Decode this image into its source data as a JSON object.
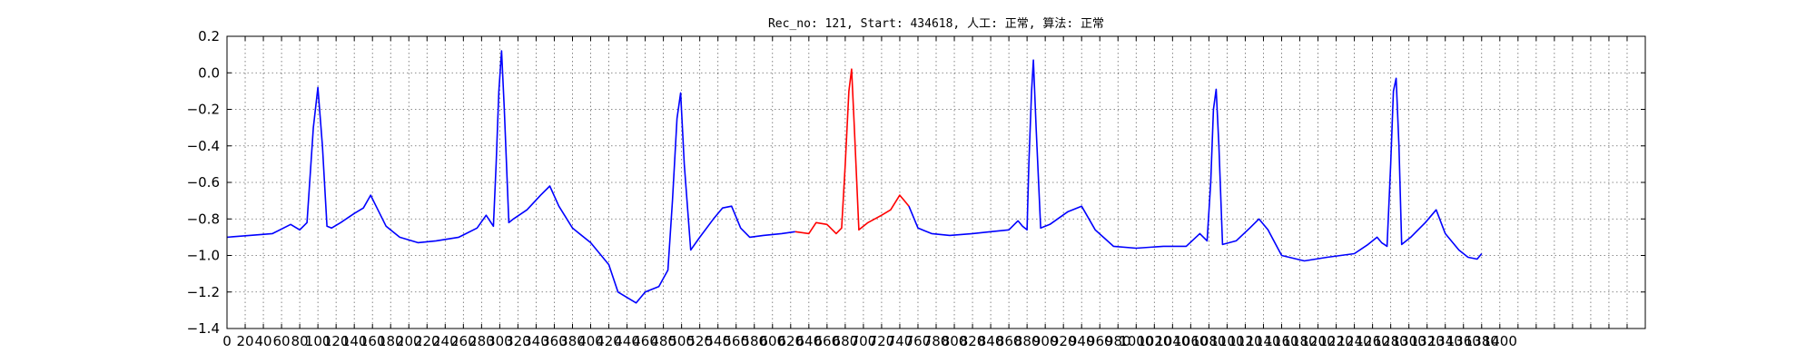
{
  "chart_data": {
    "type": "line",
    "title": "Rec_no: 121, Start: 434618, 人工: 正常, 算法: 正常",
    "xlabel": "",
    "ylabel": "",
    "xlim": [
      0,
      1560
    ],
    "ylim": [
      -1.4,
      0.2
    ],
    "grid": true,
    "x_tick_step": 20,
    "x_tick_labels_last": 1400,
    "y_ticks": [
      0.2,
      0.0,
      -0.2,
      -0.4,
      -0.6,
      -0.8,
      -1.0,
      -1.2,
      -1.4
    ],
    "y_tick_labels": [
      "0.2",
      "0.0",
      "−0.2",
      "−0.4",
      "−0.6",
      "−0.8",
      "−1.0",
      "−1.2",
      "−1.4"
    ],
    "highlight_color": "#ff0000",
    "base_color": "#0000ff",
    "series": [
      {
        "color": "#0000ff",
        "points": [
          [
            0,
            -0.9
          ],
          [
            25,
            -0.89
          ],
          [
            50,
            -0.88
          ],
          [
            70,
            -0.83
          ],
          [
            80,
            -0.86
          ],
          [
            88,
            -0.82
          ],
          [
            95,
            -0.3
          ],
          [
            100,
            -0.08
          ],
          [
            105,
            -0.4
          ],
          [
            110,
            -0.84
          ],
          [
            115,
            -0.85
          ],
          [
            125,
            -0.82
          ],
          [
            140,
            -0.77
          ],
          [
            150,
            -0.74
          ],
          [
            158,
            -0.67
          ],
          [
            163,
            -0.72
          ],
          [
            175,
            -0.84
          ],
          [
            190,
            -0.9
          ],
          [
            210,
            -0.93
          ],
          [
            230,
            -0.92
          ],
          [
            255,
            -0.9
          ],
          [
            275,
            -0.85
          ],
          [
            285,
            -0.78
          ],
          [
            293,
            -0.84
          ],
          [
            296,
            -0.5
          ],
          [
            299,
            -0.1
          ],
          [
            302,
            0.12
          ],
          [
            305,
            -0.2
          ],
          [
            310,
            -0.82
          ],
          [
            315,
            -0.8
          ],
          [
            330,
            -0.75
          ],
          [
            345,
            -0.67
          ],
          [
            355,
            -0.62
          ],
          [
            365,
            -0.73
          ],
          [
            380,
            -0.85
          ],
          [
            400,
            -0.93
          ],
          [
            420,
            -1.05
          ],
          [
            430,
            -1.2
          ],
          [
            450,
            -1.26
          ],
          [
            460,
            -1.2
          ],
          [
            475,
            -1.17
          ],
          [
            485,
            -1.08
          ],
          [
            490,
            -0.7
          ],
          [
            495,
            -0.25
          ],
          [
            499,
            -0.11
          ],
          [
            503,
            -0.5
          ],
          [
            510,
            -0.97
          ],
          [
            520,
            -0.9
          ],
          [
            535,
            -0.8
          ],
          [
            545,
            -0.74
          ],
          [
            555,
            -0.73
          ],
          [
            565,
            -0.85
          ],
          [
            575,
            -0.9
          ],
          [
            590,
            -0.89
          ],
          [
            610,
            -0.88
          ],
          [
            625,
            -0.87
          ]
        ]
      },
      {
        "color": "#ff0000",
        "points": [
          [
            625,
            -0.87
          ],
          [
            640,
            -0.88
          ],
          [
            648,
            -0.82
          ],
          [
            660,
            -0.83
          ],
          [
            670,
            -0.88
          ],
          [
            676,
            -0.85
          ],
          [
            680,
            -0.5
          ],
          [
            684,
            -0.1
          ],
          [
            687,
            0.02
          ],
          [
            690,
            -0.3
          ],
          [
            695,
            -0.86
          ],
          [
            705,
            -0.82
          ],
          [
            720,
            -0.78
          ],
          [
            730,
            -0.75
          ],
          [
            740,
            -0.67
          ],
          [
            745,
            -0.7
          ],
          [
            750,
            -0.73
          ]
        ]
      },
      {
        "color": "#0000ff",
        "points": [
          [
            750,
            -0.73
          ],
          [
            760,
            -0.85
          ],
          [
            775,
            -0.88
          ],
          [
            795,
            -0.89
          ],
          [
            820,
            -0.88
          ],
          [
            840,
            -0.87
          ],
          [
            860,
            -0.86
          ],
          [
            870,
            -0.81
          ],
          [
            875,
            -0.84
          ],
          [
            880,
            -0.86
          ],
          [
            882,
            -0.5
          ],
          [
            885,
            -0.1
          ],
          [
            887,
            0.07
          ],
          [
            890,
            -0.3
          ],
          [
            895,
            -0.85
          ],
          [
            905,
            -0.83
          ],
          [
            925,
            -0.76
          ],
          [
            940,
            -0.73
          ],
          [
            955,
            -0.86
          ],
          [
            975,
            -0.95
          ],
          [
            1000,
            -0.96
          ],
          [
            1030,
            -0.95
          ],
          [
            1055,
            -0.95
          ],
          [
            1070,
            -0.88
          ],
          [
            1078,
            -0.92
          ],
          [
            1082,
            -0.6
          ],
          [
            1085,
            -0.2
          ],
          [
            1088,
            -0.09
          ],
          [
            1091,
            -0.4
          ],
          [
            1095,
            -0.94
          ],
          [
            1110,
            -0.92
          ],
          [
            1125,
            -0.85
          ],
          [
            1135,
            -0.8
          ],
          [
            1145,
            -0.86
          ],
          [
            1160,
            -1.0
          ],
          [
            1185,
            -1.03
          ],
          [
            1210,
            -1.01
          ],
          [
            1240,
            -0.99
          ],
          [
            1255,
            -0.94
          ],
          [
            1265,
            -0.9
          ],
          [
            1270,
            -0.93
          ],
          [
            1276,
            -0.95
          ],
          [
            1280,
            -0.5
          ],
          [
            1283,
            -0.1
          ],
          [
            1286,
            -0.03
          ],
          [
            1289,
            -0.4
          ],
          [
            1292,
            -0.94
          ],
          [
            1302,
            -0.9
          ],
          [
            1318,
            -0.82
          ],
          [
            1330,
            -0.75
          ],
          [
            1340,
            -0.88
          ],
          [
            1355,
            -0.97
          ],
          [
            1365,
            -1.01
          ],
          [
            1375,
            -1.02
          ],
          [
            1380,
            -0.99
          ]
        ]
      }
    ]
  }
}
